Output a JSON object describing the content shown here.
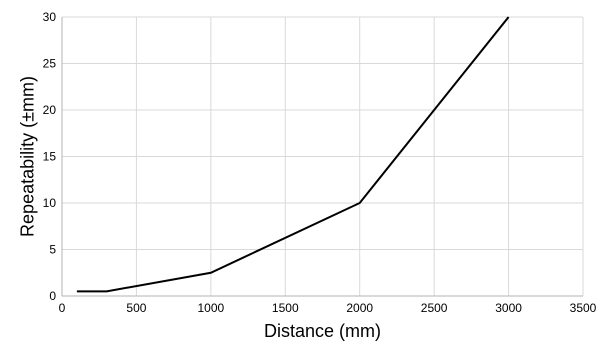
{
  "chart_data": {
    "type": "line",
    "xlabel": "Distance (mm)",
    "ylabel": "Repeatability (±mm)",
    "xlim": [
      0,
      3500
    ],
    "ylim": [
      0,
      30
    ],
    "x_ticks": [
      "0",
      "500",
      "1000",
      "1500",
      "2000",
      "2500",
      "3000",
      "3500"
    ],
    "y_ticks": [
      "0",
      "5",
      "10",
      "15",
      "20",
      "25",
      "30"
    ],
    "grid": true,
    "legend": "none",
    "series": [
      {
        "color": "#000000",
        "x": [
          100,
          300,
          1000,
          2000,
          3000
        ],
        "y": [
          0.5,
          0.5,
          2.5,
          10,
          30
        ]
      }
    ]
  }
}
